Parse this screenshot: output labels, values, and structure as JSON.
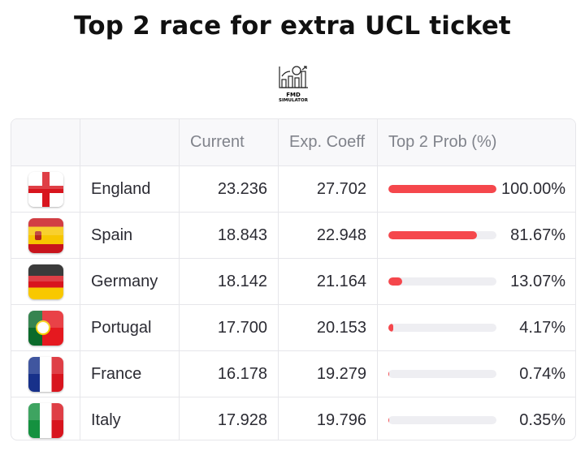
{
  "title": "Top 2 race for extra UCL ticket",
  "logo": {
    "line1": "FMD",
    "line2": "SIMULATOR"
  },
  "columns": [
    "",
    "",
    "Current",
    "Exp. Coeff",
    "Top 2 Prob (%)"
  ],
  "bar_color": "#f5474c",
  "rows": [
    {
      "country": "England",
      "current": "23.236",
      "exp": "27.702",
      "prob": "100.00%",
      "p": 100.0,
      "flag": "england"
    },
    {
      "country": "Spain",
      "current": "18.843",
      "exp": "22.948",
      "prob": "81.67%",
      "p": 81.67,
      "flag": "spain"
    },
    {
      "country": "Germany",
      "current": "18.142",
      "exp": "21.164",
      "prob": "13.07%",
      "p": 13.07,
      "flag": "germany"
    },
    {
      "country": "Portugal",
      "current": "17.700",
      "exp": "20.153",
      "prob": "4.17%",
      "p": 4.17,
      "flag": "portugal"
    },
    {
      "country": "France",
      "current": "16.178",
      "exp": "19.279",
      "prob": "0.74%",
      "p": 0.74,
      "flag": "france"
    },
    {
      "country": "Italy",
      "current": "17.928",
      "exp": "19.796",
      "prob": "0.35%",
      "p": 0.35,
      "flag": "italy"
    }
  ]
}
